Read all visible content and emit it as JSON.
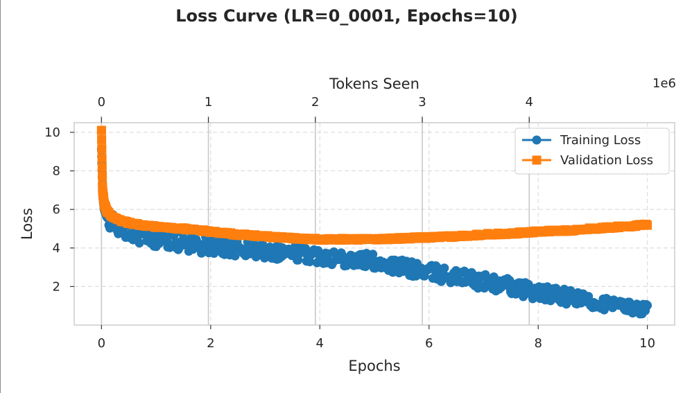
{
  "chart_data": {
    "type": "scatter",
    "title": "Loss Curve (LR=0_0001, Epochs=10)",
    "xlabel": "Epochs",
    "ylabel": "Loss",
    "x2label": "Tokens Seen",
    "x2_exponent": "1e6",
    "xlim": [
      -0.5,
      10.5
    ],
    "ylim": [
      0,
      10.5
    ],
    "x2lim": [
      -0.255,
      5.36
    ],
    "xticks": [
      "0",
      "2",
      "4",
      "6",
      "8",
      "10"
    ],
    "yticks": [
      "2",
      "4",
      "6",
      "8",
      "10"
    ],
    "x2ticks": [
      "0",
      "1",
      "2",
      "3",
      "4"
    ],
    "grid": true,
    "legend_position": "top-right",
    "series": [
      {
        "name": "Training Loss",
        "color": "#1f77b4",
        "marker": "circle",
        "x": [
          0,
          0.02,
          0.05,
          0.1,
          0.2,
          0.3,
          0.5,
          0.7,
          1.0,
          1.5,
          2.0,
          2.5,
          3.0,
          3.5,
          4.0,
          4.5,
          5.0,
          5.5,
          6.0,
          6.5,
          7.0,
          7.5,
          8.0,
          8.5,
          9.0,
          9.5,
          10.0
        ],
        "y": [
          9.1,
          6.8,
          6.0,
          5.6,
          5.3,
          5.1,
          4.9,
          4.7,
          4.5,
          4.3,
          4.1,
          3.95,
          3.85,
          3.75,
          3.6,
          3.45,
          3.3,
          3.0,
          2.75,
          2.5,
          2.25,
          2.0,
          1.7,
          1.45,
          1.2,
          1.0,
          0.8
        ],
        "spread": [
          0.2,
          0.3,
          0.35,
          0.45,
          0.45,
          0.45,
          0.45,
          0.45,
          0.45,
          0.45,
          0.45,
          0.4,
          0.4,
          0.4,
          0.4,
          0.4,
          0.4,
          0.4,
          0.4,
          0.4,
          0.4,
          0.4,
          0.4,
          0.4,
          0.35,
          0.3,
          0.3
        ]
      },
      {
        "name": "Validation Loss",
        "color": "#ff7f0e",
        "marker": "square",
        "x": [
          0,
          0.02,
          0.05,
          0.1,
          0.2,
          0.3,
          0.5,
          0.7,
          1.0,
          1.5,
          2.0,
          2.5,
          3.0,
          3.5,
          4.0,
          4.5,
          5.0,
          5.5,
          6.0,
          6.5,
          7.0,
          7.5,
          8.0,
          8.5,
          9.0,
          9.5,
          10.0
        ],
        "y": [
          10.1,
          7.0,
          6.3,
          5.9,
          5.6,
          5.45,
          5.3,
          5.2,
          5.1,
          5.0,
          4.85,
          4.7,
          4.6,
          4.5,
          4.45,
          4.45,
          4.45,
          4.5,
          4.55,
          4.6,
          4.7,
          4.75,
          4.85,
          4.9,
          5.0,
          5.1,
          5.2
        ],
        "spread": [
          0,
          0.1,
          0.08,
          0.06,
          0.06,
          0.05,
          0.05,
          0.05,
          0.05,
          0.05,
          0.05,
          0.05,
          0.05,
          0.05,
          0.05,
          0.05,
          0.05,
          0.05,
          0.05,
          0.05,
          0.05,
          0.05,
          0.05,
          0.05,
          0.05,
          0.05,
          0.05
        ]
      }
    ]
  }
}
